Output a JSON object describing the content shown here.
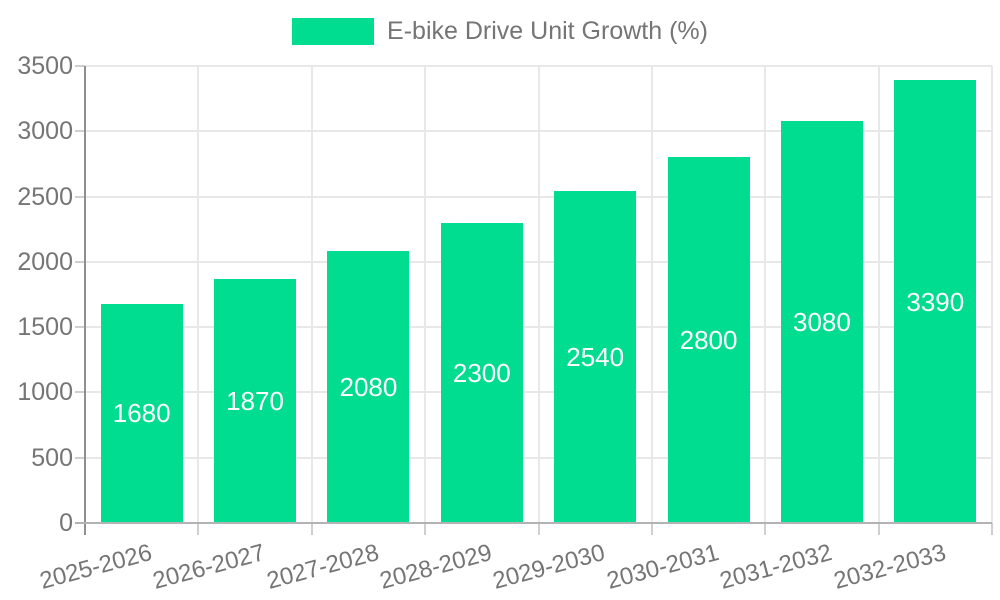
{
  "legend": {
    "label": "E-bike Drive Unit Growth (%)"
  },
  "colors": {
    "bar": "#00DC90",
    "bar_label": "#ffffff",
    "axis_text": "#757575",
    "grid": "#e8e8e8",
    "tick": "#cfcfcf",
    "y_axis_line": "#8f8f8f",
    "zero_line": "#b3b3b3",
    "background": "#ffffff"
  },
  "chart_data": {
    "type": "bar",
    "title": "",
    "xlabel": "",
    "ylabel": "",
    "categories": [
      "2025-2026",
      "2026-2027",
      "2027-2028",
      "2028-2029",
      "2029-2030",
      "2030-2031",
      "2031-2032",
      "2032-2033"
    ],
    "series": [
      {
        "name": "E-bike Drive Unit Growth (%)",
        "values": [
          1680,
          1870,
          2080,
          2300,
          2540,
          2800,
          3080,
          3390
        ]
      }
    ],
    "bar_value_labels": [
      "1680",
      "1870",
      "2080",
      "2300",
      "2540",
      "2800",
      "3080",
      "3390"
    ],
    "bar_label_position": "center-inside",
    "ylim": [
      0,
      3500
    ],
    "yticks": [
      0,
      500,
      1000,
      1500,
      2000,
      2500,
      3000,
      3500
    ],
    "grid": "both",
    "legend_position": "top-center",
    "x_label_rotation_deg": -15
  }
}
